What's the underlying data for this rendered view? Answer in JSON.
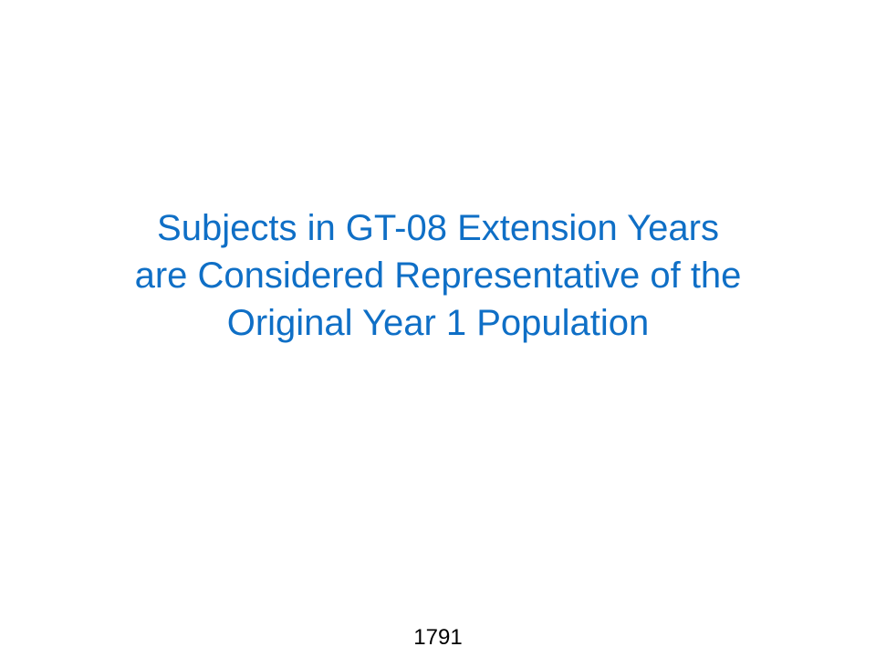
{
  "slide": {
    "title_lines": [
      "Subjects in GT-08 Extension Years",
      "are Considered Representative of the",
      "Original Year 1 Population"
    ],
    "page_number": "1791",
    "title_color": "#0f6fc6",
    "background_color": "#ffffff"
  }
}
